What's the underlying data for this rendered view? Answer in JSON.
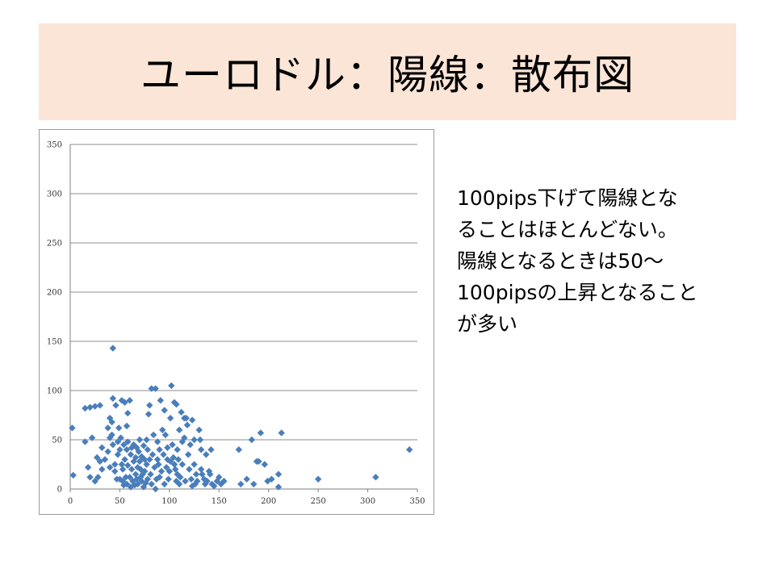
{
  "slide": {
    "title": "ユーロドル：陽線：散布図",
    "text_lines": [
      "100pips下げて陽線とな",
      "ることはほとんどない。",
      "陽線となるときは50～",
      "100pipsの上昇となること",
      "が多い"
    ]
  },
  "colors": {
    "title_background": "#fbe5d6",
    "marker": "#4a7ebb",
    "gridline": "#8c8c8c"
  },
  "chart_data": {
    "type": "scatter",
    "title": "",
    "xlabel": "",
    "ylabel": "",
    "xlim": [
      0,
      350
    ],
    "ylim": [
      0,
      350
    ],
    "x_ticks": [
      0,
      50,
      100,
      150,
      200,
      250,
      300,
      350
    ],
    "y_ticks": [
      0,
      50,
      100,
      150,
      200,
      250,
      300,
      350
    ],
    "grid": "horizontal",
    "legend": "none",
    "marker": "diamond",
    "points": [
      [
        2,
        62
      ],
      [
        3,
        14
      ],
      [
        15,
        82
      ],
      [
        15,
        48
      ],
      [
        18,
        22
      ],
      [
        20,
        83
      ],
      [
        20,
        12
      ],
      [
        22,
        52
      ],
      [
        25,
        8
      ],
      [
        25,
        84
      ],
      [
        27,
        32
      ],
      [
        28,
        12
      ],
      [
        30,
        85
      ],
      [
        30,
        28
      ],
      [
        32,
        42
      ],
      [
        32,
        20
      ],
      [
        35,
        30
      ],
      [
        38,
        38
      ],
      [
        38,
        62
      ],
      [
        40,
        72
      ],
      [
        40,
        52
      ],
      [
        40,
        22
      ],
      [
        42,
        68
      ],
      [
        42,
        55
      ],
      [
        43,
        45
      ],
      [
        43,
        92
      ],
      [
        43,
        143
      ],
      [
        45,
        25
      ],
      [
        45,
        18
      ],
      [
        46,
        85
      ],
      [
        47,
        10
      ],
      [
        48,
        48
      ],
      [
        48,
        35
      ],
      [
        49,
        62
      ],
      [
        50,
        40
      ],
      [
        50,
        10
      ],
      [
        51,
        52
      ],
      [
        52,
        90
      ],
      [
        52,
        25
      ],
      [
        53,
        20
      ],
      [
        53,
        8
      ],
      [
        54,
        45
      ],
      [
        54,
        4
      ],
      [
        55,
        88
      ],
      [
        55,
        30
      ],
      [
        56,
        12
      ],
      [
        57,
        40
      ],
      [
        57,
        64
      ],
      [
        57,
        5
      ],
      [
        58,
        77
      ],
      [
        58,
        48
      ],
      [
        58,
        24
      ],
      [
        60,
        90
      ],
      [
        60,
        12
      ],
      [
        61,
        35
      ],
      [
        61,
        2
      ],
      [
        62,
        42
      ],
      [
        62,
        20
      ],
      [
        63,
        8
      ],
      [
        64,
        28
      ],
      [
        64,
        45
      ],
      [
        65,
        4
      ],
      [
        66,
        32
      ],
      [
        66,
        15
      ],
      [
        67,
        10
      ],
      [
        67,
        42
      ],
      [
        68,
        22
      ],
      [
        68,
        5
      ],
      [
        69,
        38
      ],
      [
        70,
        50
      ],
      [
        70,
        28
      ],
      [
        71,
        12
      ],
      [
        71,
        20
      ],
      [
        72,
        8
      ],
      [
        72,
        33
      ],
      [
        73,
        15
      ],
      [
        74,
        44
      ],
      [
        74,
        2
      ],
      [
        75,
        30
      ],
      [
        75,
        18
      ],
      [
        76,
        6
      ],
      [
        77,
        50
      ],
      [
        77,
        25
      ],
      [
        78,
        40
      ],
      [
        78,
        10
      ],
      [
        79,
        76
      ],
      [
        80,
        85
      ],
      [
        80,
        30
      ],
      [
        81,
        15
      ],
      [
        82,
        102
      ],
      [
        82,
        5
      ],
      [
        83,
        35
      ],
      [
        84,
        55
      ],
      [
        85,
        22
      ],
      [
        86,
        102
      ],
      [
        86,
        0
      ],
      [
        87,
        10
      ],
      [
        88,
        48
      ],
      [
        88,
        30
      ],
      [
        89,
        25
      ],
      [
        90,
        40
      ],
      [
        90,
        12
      ],
      [
        91,
        90
      ],
      [
        92,
        18
      ],
      [
        93,
        60
      ],
      [
        94,
        35
      ],
      [
        95,
        80
      ],
      [
        95,
        5
      ],
      [
        96,
        55
      ],
      [
        97,
        22
      ],
      [
        98,
        42
      ],
      [
        98,
        30
      ],
      [
        99,
        10
      ],
      [
        100,
        18
      ],
      [
        101,
        28
      ],
      [
        101,
        72
      ],
      [
        102,
        105
      ],
      [
        103,
        45
      ],
      [
        104,
        32
      ],
      [
        105,
        25
      ],
      [
        105,
        88
      ],
      [
        106,
        20
      ],
      [
        107,
        86
      ],
      [
        107,
        8
      ],
      [
        108,
        40
      ],
      [
        108,
        15
      ],
      [
        109,
        30
      ],
      [
        110,
        60
      ],
      [
        110,
        5
      ],
      [
        111,
        12
      ],
      [
        112,
        78
      ],
      [
        113,
        48
      ],
      [
        113,
        25
      ],
      [
        115,
        52
      ],
      [
        115,
        72
      ],
      [
        116,
        8
      ],
      [
        117,
        72
      ],
      [
        118,
        65
      ],
      [
        119,
        35
      ],
      [
        120,
        20
      ],
      [
        121,
        45
      ],
      [
        122,
        10
      ],
      [
        123,
        70
      ],
      [
        123,
        3
      ],
      [
        125,
        25
      ],
      [
        125,
        50
      ],
      [
        126,
        5
      ],
      [
        127,
        15
      ],
      [
        128,
        8
      ],
      [
        130,
        60
      ],
      [
        131,
        50
      ],
      [
        132,
        40
      ],
      [
        132,
        20
      ],
      [
        133,
        15
      ],
      [
        135,
        10
      ],
      [
        136,
        5
      ],
      [
        137,
        35
      ],
      [
        138,
        8
      ],
      [
        140,
        18
      ],
      [
        141,
        15
      ],
      [
        142,
        40
      ],
      [
        143,
        5
      ],
      [
        145,
        3
      ],
      [
        148,
        8
      ],
      [
        150,
        12
      ],
      [
        152,
        5
      ],
      [
        155,
        8
      ],
      [
        170,
        40
      ],
      [
        172,
        5
      ],
      [
        178,
        10
      ],
      [
        183,
        50
      ],
      [
        185,
        5
      ],
      [
        188,
        28
      ],
      [
        190,
        28
      ],
      [
        192,
        57
      ],
      [
        196,
        25
      ],
      [
        199,
        8
      ],
      [
        203,
        10
      ],
      [
        210,
        15
      ],
      [
        210,
        2
      ],
      [
        213,
        57
      ],
      [
        250,
        10
      ],
      [
        308,
        12
      ],
      [
        342,
        40
      ]
    ]
  }
}
